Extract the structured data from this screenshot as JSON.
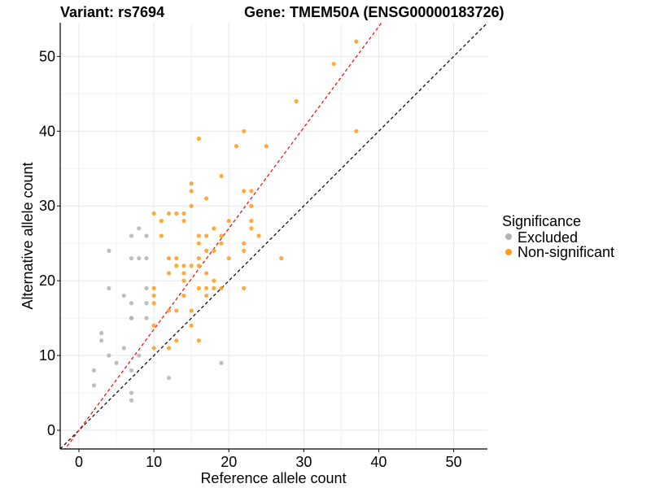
{
  "chart_data": {
    "type": "scatter",
    "title_left": "Variant: rs7694",
    "title_right": "Gene: TMEM50A (ENSG00000183726)",
    "xlabel": "Reference allele count",
    "ylabel": "Alternative allele count",
    "xlim": [
      -2.5,
      54.5
    ],
    "ylim": [
      -2.5,
      54.5
    ],
    "xticks": [
      0,
      10,
      20,
      30,
      40,
      50
    ],
    "yticks": [
      0,
      10,
      20,
      30,
      40,
      50
    ],
    "grid": true,
    "legend": {
      "title": "Significance",
      "position": "right",
      "entries": [
        {
          "label": "Excluded",
          "color": "#b3b3b3"
        },
        {
          "label": "Non-significant",
          "color": "#ff9c1a"
        }
      ]
    },
    "reference_lines": [
      {
        "slope": 1,
        "intercept": 0,
        "color": "#000000",
        "style": "dashed"
      },
      {
        "slope": 1.35,
        "intercept": 0,
        "color": "#ff0000",
        "style": "dashed"
      }
    ],
    "series": [
      {
        "name": "Excluded",
        "color": "#b3b3b3",
        "points": [
          [
            2,
            8
          ],
          [
            2,
            6
          ],
          [
            3,
            13
          ],
          [
            3,
            12
          ],
          [
            4,
            24
          ],
          [
            4,
            19
          ],
          [
            4,
            10
          ],
          [
            5,
            9
          ],
          [
            6,
            18
          ],
          [
            6,
            11
          ],
          [
            7,
            26
          ],
          [
            7,
            23
          ],
          [
            7,
            17
          ],
          [
            7,
            15
          ],
          [
            7,
            15
          ],
          [
            7,
            8
          ],
          [
            7,
            5
          ],
          [
            7,
            4
          ],
          [
            8,
            27
          ],
          [
            8,
            23
          ],
          [
            8,
            10
          ],
          [
            9,
            26
          ],
          [
            9,
            23
          ],
          [
            9,
            19
          ],
          [
            9,
            17
          ],
          [
            9,
            15
          ],
          [
            12,
            7
          ],
          [
            19,
            9
          ]
        ]
      },
      {
        "name": "Non-significant",
        "color": "#ff9c1a",
        "points": [
          [
            10,
            29
          ],
          [
            10,
            19
          ],
          [
            10,
            18
          ],
          [
            10,
            17
          ],
          [
            10,
            14
          ],
          [
            10,
            11
          ],
          [
            11,
            28
          ],
          [
            11,
            26
          ],
          [
            12,
            29
          ],
          [
            12,
            23
          ],
          [
            12,
            21
          ],
          [
            12,
            16
          ],
          [
            12,
            11
          ],
          [
            13,
            29
          ],
          [
            13,
            23
          ],
          [
            13,
            22
          ],
          [
            13,
            16
          ],
          [
            13,
            12
          ],
          [
            14,
            29
          ],
          [
            14,
            28
          ],
          [
            14,
            22
          ],
          [
            14,
            21
          ],
          [
            14,
            20
          ],
          [
            14,
            18
          ],
          [
            15,
            33
          ],
          [
            15,
            32
          ],
          [
            15,
            30
          ],
          [
            15,
            22
          ],
          [
            15,
            16
          ],
          [
            15,
            14
          ],
          [
            16,
            39
          ],
          [
            16,
            26
          ],
          [
            16,
            25
          ],
          [
            16,
            23
          ],
          [
            16,
            22
          ],
          [
            16,
            19
          ],
          [
            16,
            12
          ],
          [
            17,
            31
          ],
          [
            17,
            26
          ],
          [
            17,
            24
          ],
          [
            17,
            21
          ],
          [
            17,
            19
          ],
          [
            17,
            18
          ],
          [
            18,
            27
          ],
          [
            18,
            24
          ],
          [
            18,
            20
          ],
          [
            18,
            19
          ],
          [
            19,
            34
          ],
          [
            19,
            26
          ],
          [
            19,
            25
          ],
          [
            19,
            19
          ],
          [
            20,
            28
          ],
          [
            20,
            23
          ],
          [
            21,
            38
          ],
          [
            22,
            40
          ],
          [
            22,
            32
          ],
          [
            22,
            25
          ],
          [
            22,
            24
          ],
          [
            22,
            19
          ],
          [
            23,
            32
          ],
          [
            23,
            30
          ],
          [
            23,
            28
          ],
          [
            23,
            27
          ],
          [
            24,
            26
          ],
          [
            25,
            38
          ],
          [
            27,
            23
          ],
          [
            29,
            44
          ],
          [
            34,
            49
          ],
          [
            37,
            52
          ],
          [
            37,
            40
          ]
        ]
      }
    ]
  }
}
